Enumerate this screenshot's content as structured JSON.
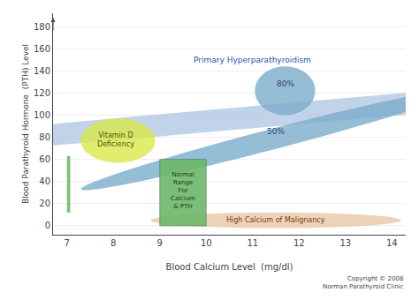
{
  "chart_data": {
    "type": "regions",
    "xlabel": "Blood Calcium Level  (mg/dl)",
    "ylabel": "Blood Parathyroid Hormone  (PTH) Level",
    "xlim": [
      6.7,
      14.3
    ],
    "ylim": [
      -8,
      192
    ],
    "xticks": [
      7,
      8,
      9,
      10,
      11,
      12,
      13,
      14
    ],
    "yticks": [
      0,
      20,
      40,
      60,
      80,
      100,
      120,
      140,
      160,
      180
    ],
    "grid": "y",
    "arrows": [
      {
        "x": 6.7,
        "from": 175,
        "to": 188
      }
    ],
    "regions": [
      {
        "shape": "ellipse",
        "cx": 11.5,
        "cy": 100,
        "rx": 2.6,
        "ry": 80,
        "angle": -15,
        "color": "#b0c8e4",
        "label": {
          "text": "Primary Hyperparathyroidism",
          "x": 11.0,
          "y": 150,
          "color": "#2255aa"
        }
      },
      {
        "shape": "ellipse",
        "cx": 11.5,
        "cy": 5,
        "rx": 2.7,
        "ry": 7,
        "angle": 0,
        "color": "#e8c8a8",
        "label": {
          "text": "High Calcium of Malignancy",
          "x": 11.5,
          "y": 5,
          "color": "#7a3a10"
        }
      },
      {
        "shape": "ellipse",
        "cx": 11.4,
        "cy": 78,
        "rx": 0.85,
        "ry": 46,
        "angle": -5,
        "color": "#7aadcc",
        "label": {
          "text": "50%",
          "x": 11.5,
          "y": 85,
          "color": "#334466"
        }
      },
      {
        "shape": "ellipse",
        "cx": 11.7,
        "cy": 122,
        "rx": 0.65,
        "ry": 22,
        "angle": 0,
        "color": "#7aadcc",
        "label": {
          "text": "80%",
          "x": 11.7,
          "y": 128,
          "color": "#334466"
        }
      },
      {
        "shape": "ellipse",
        "cx": 8.1,
        "cy": 77,
        "rx": 0.8,
        "ry": 20,
        "angle": 0,
        "color": "#d8e84a",
        "label": {
          "text": "Vitamin D\nDeficiency",
          "x": 8.05,
          "y": 78,
          "color": "#555500"
        }
      },
      {
        "shape": "rect",
        "x0": 9.0,
        "x1": 10.0,
        "y0": 0,
        "y1": 60,
        "color": "#6db86a",
        "edge_color": "#446644",
        "label": {
          "text": "Normal\nRange\nFor\nCalcium\n& PTH",
          "x": 9.5,
          "y": 32,
          "color": "#1a3a1a"
        }
      },
      {
        "shape": "rect",
        "x0": 7.0,
        "x1": 7.07,
        "y0": 12,
        "y1": 63,
        "color": "#6db86a"
      }
    ],
    "annotations": [
      "Copyright © 2008\nNorman Parathyroid Clinic"
    ]
  }
}
